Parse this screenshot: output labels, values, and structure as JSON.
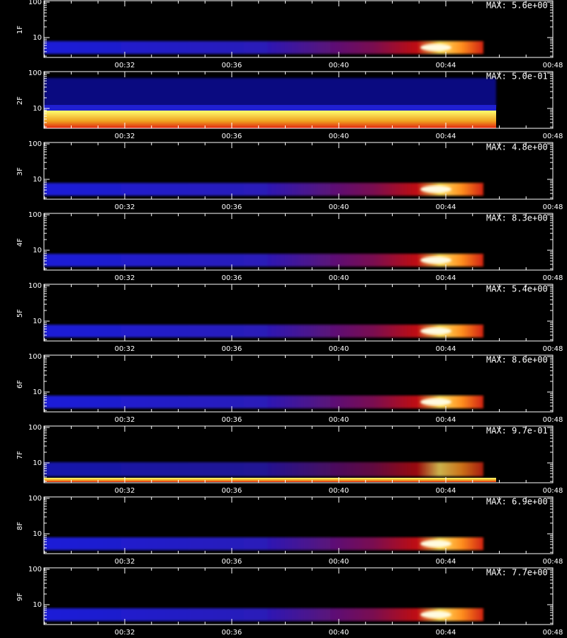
{
  "panels": [
    {
      "label": "1F",
      "max": "MAX: 5.6e+00"
    },
    {
      "label": "2F",
      "max": "MAX: 5.0e-01"
    },
    {
      "label": "3F",
      "max": "MAX: 4.8e+00"
    },
    {
      "label": "4F",
      "max": "MAX: 8.3e+00"
    },
    {
      "label": "5F",
      "max": "MAX: 5.4e+00"
    },
    {
      "label": "6F",
      "max": "MAX: 8.6e+00"
    },
    {
      "label": "7F",
      "max": "MAX: 9.7e-01"
    },
    {
      "label": "8F",
      "max": "MAX: 6.9e+00"
    },
    {
      "label": "9F",
      "max": "MAX: 7.7e+00"
    }
  ],
  "x_ticks": [
    "00:32",
    "00:36",
    "00:40",
    "00:44",
    "00:48"
  ],
  "y_ticks": [
    "100",
    "10"
  ]
}
